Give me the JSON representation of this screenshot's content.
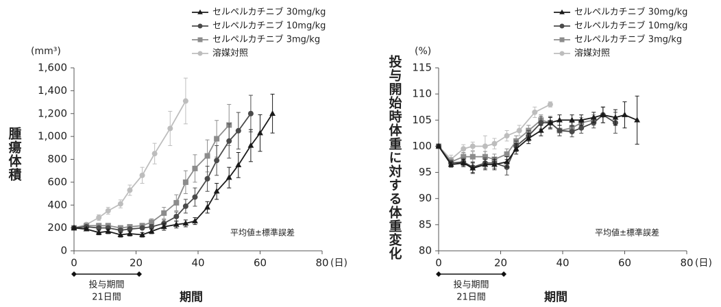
{
  "chart_data": [
    {
      "type": "line",
      "y_label": "腫瘍体積",
      "y_unit": "(mm³)",
      "x_label": "期間",
      "x_unit": "(日)",
      "note": "平均値±標準誤差",
      "dosing_label": "投与期間",
      "dosing_duration": "21日間",
      "dosing_period": [
        0,
        21
      ],
      "xlim": [
        0,
        80
      ],
      "xticks": [
        0,
        20,
        40,
        60,
        80
      ],
      "ylim": [
        0,
        1600
      ],
      "yticks": [
        0,
        200,
        400,
        600,
        800,
        {
          "value": 1000,
          "label": "1,000"
        },
        {
          "value": 1200,
          "label": "1,200"
        },
        {
          "value": 1400,
          "label": "1,400"
        },
        {
          "value": 1600,
          "label": "1,600"
        }
      ],
      "series": [
        {
          "name": "セルペルカチニブ 30mg/kg",
          "color": "#1a1a1a",
          "marker": "triangle",
          "x": [
            0,
            4,
            8,
            11,
            15,
            18,
            22,
            25,
            29,
            33,
            36,
            39,
            43,
            46,
            50,
            53,
            57,
            60,
            64
          ],
          "values": [
            200,
            190,
            160,
            170,
            140,
            150,
            140,
            170,
            210,
            230,
            240,
            260,
            380,
            520,
            640,
            750,
            920,
            1030,
            1200
          ],
          "errors": [
            10,
            10,
            20,
            20,
            20,
            20,
            20,
            20,
            30,
            30,
            30,
            30,
            50,
            70,
            90,
            110,
            140,
            160,
            170
          ]
        },
        {
          "name": "セルペルカチニブ 10mg/kg",
          "color": "#4a4a4a",
          "marker": "circle",
          "x": [
            0,
            4,
            8,
            11,
            15,
            18,
            22,
            25,
            29,
            33,
            36,
            39,
            43,
            46,
            50,
            53,
            57
          ],
          "values": [
            200,
            210,
            200,
            200,
            180,
            190,
            200,
            210,
            240,
            300,
            390,
            470,
            630,
            790,
            960,
            1050,
            1200
          ],
          "errors": [
            10,
            10,
            10,
            10,
            10,
            10,
            10,
            20,
            30,
            40,
            60,
            80,
            110,
            130,
            150,
            160,
            160
          ]
        },
        {
          "name": "セルペルカチニブ 3mg/kg",
          "color": "#8c8c8c",
          "marker": "square",
          "x": [
            0,
            4,
            8,
            11,
            15,
            18,
            22,
            25,
            29,
            33,
            36,
            39,
            43,
            46,
            50
          ],
          "values": [
            200,
            220,
            220,
            220,
            200,
            210,
            220,
            250,
            330,
            420,
            600,
            720,
            830,
            980,
            1100
          ],
          "errors": [
            10,
            10,
            10,
            10,
            20,
            20,
            20,
            30,
            50,
            70,
            100,
            120,
            140,
            160,
            180
          ]
        },
        {
          "name": "溶媒対照",
          "color": "#bdbdbd",
          "marker": "circle",
          "x": [
            0,
            4,
            8,
            11,
            15,
            18,
            22,
            26,
            31,
            36
          ],
          "values": [
            200,
            230,
            290,
            350,
            410,
            530,
            660,
            850,
            1070,
            1310
          ],
          "errors": [
            10,
            15,
            25,
            30,
            35,
            45,
            70,
            90,
            150,
            200
          ]
        }
      ]
    },
    {
      "type": "line",
      "y_label": "投与開始時体重に対する体重変化",
      "y_unit": "(%)",
      "x_label": "期間",
      "x_unit": "(日)",
      "note": "平均値±標準誤差",
      "dosing_label": "投与期間",
      "dosing_duration": "21日間",
      "dosing_period": [
        0,
        21
      ],
      "xlim": [
        0,
        80
      ],
      "xticks": [
        0,
        20,
        40,
        60,
        80
      ],
      "ylim": [
        80,
        115
      ],
      "yticks": [
        80,
        85,
        90,
        95,
        100,
        105,
        110,
        115
      ],
      "series": [
        {
          "name": "セルペルカチニブ 30mg/kg",
          "color": "#1a1a1a",
          "marker": "triangle",
          "x": [
            0,
            4,
            8,
            11,
            15,
            18,
            22,
            25,
            29,
            33,
            36,
            39,
            43,
            46,
            50,
            53,
            57,
            60,
            64
          ],
          "values": [
            100,
            96.5,
            96.8,
            95.8,
            96.5,
            96.5,
            97,
            99.5,
            101.5,
            103,
            104.5,
            105,
            105,
            105,
            105.5,
            106,
            105.5,
            106,
            105
          ],
          "errors": [
            0.3,
            0.5,
            0.7,
            1,
            1,
            1,
            1,
            1,
            1,
            1,
            1,
            1,
            1,
            1,
            1,
            1.5,
            1.5,
            2.5,
            4.6
          ]
        },
        {
          "name": "セルペルカチニブ 10mg/kg",
          "color": "#4a4a4a",
          "marker": "circle",
          "x": [
            0,
            4,
            8,
            11,
            15,
            18,
            22,
            25,
            29,
            33,
            36,
            39,
            43,
            46,
            50,
            53,
            57
          ],
          "values": [
            100,
            96.8,
            97,
            96,
            96.8,
            96.8,
            96,
            100,
            102,
            104.5,
            104.5,
            103,
            102.8,
            103.5,
            104.5,
            106,
            104.5
          ],
          "errors": [
            0.3,
            0.5,
            0.7,
            1,
            1,
            1,
            1.5,
            1,
            1,
            1.2,
            1.2,
            1,
            1,
            1,
            1,
            1.5,
            2
          ]
        },
        {
          "name": "セルペルカチニブ 3mg/kg",
          "color": "#8c8c8c",
          "marker": "square",
          "x": [
            0,
            4,
            8,
            11,
            15,
            18,
            22,
            25,
            29,
            33,
            36,
            39,
            43,
            46,
            50
          ],
          "values": [
            100,
            97,
            98,
            98,
            98,
            97.5,
            98.5,
            101,
            103,
            105,
            104.5,
            103,
            103.5,
            104.5,
            105
          ],
          "errors": [
            0.3,
            0.7,
            0.8,
            1,
            1,
            1,
            1,
            1,
            1,
            1,
            1,
            1,
            1,
            1,
            1
          ]
        },
        {
          "name": "溶媒対照",
          "color": "#bdbdbd",
          "marker": "circle",
          "x": [
            0,
            4,
            8,
            11,
            15,
            18,
            22,
            26,
            31,
            36
          ],
          "values": [
            100,
            97.5,
            99.5,
            100,
            100,
            100.5,
            102,
            103,
            106.5,
            108
          ],
          "errors": [
            0.3,
            0.8,
            0.8,
            0.8,
            2,
            1,
            1,
            1,
            1,
            0.5
          ]
        }
      ]
    }
  ]
}
